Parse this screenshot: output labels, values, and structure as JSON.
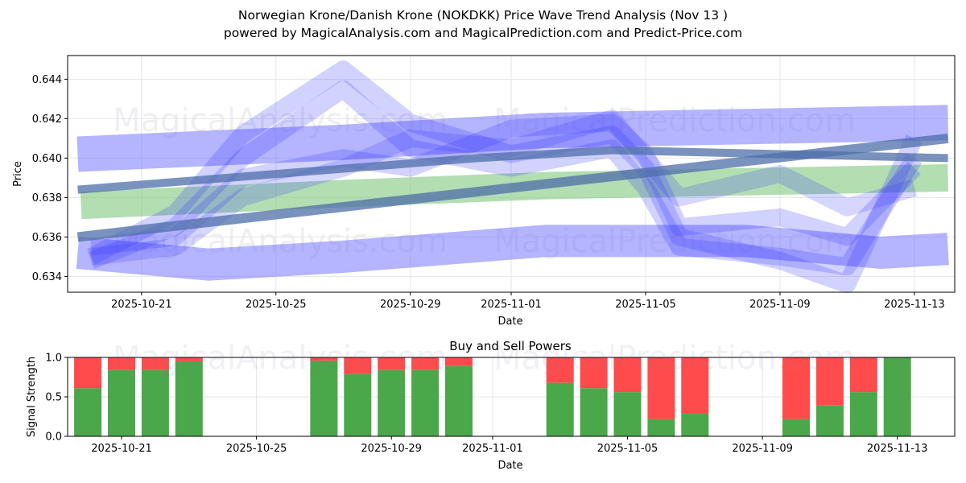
{
  "title_line1": "Norwegian Krone/Danish Krone (NOKDKK) Price Wave Trend Analysis (Nov 13 )",
  "title_line2": "powered by MagicalAnalysis.com and MagicalPrediction.com and Predict-Price.com",
  "watermarks": [
    "MagicalAnalysis.com",
    "MagicalPrediction.com"
  ],
  "chart_data": [
    {
      "type": "line",
      "title": "",
      "xlabel": "Date",
      "ylabel": "Price",
      "x_ticks": [
        "2025-10-21",
        "2025-10-25",
        "2025-10-29",
        "2025-11-01",
        "2025-11-05",
        "2025-11-09",
        "2025-11-13"
      ],
      "y_ticks": [
        "0.634",
        "0.636",
        "0.638",
        "0.640",
        "0.642",
        "0.644"
      ],
      "ylim": [
        0.6332,
        0.6452
      ],
      "xlim_days_from_2025-10-21": [
        -2.2,
        24.2
      ],
      "grid": true,
      "series": [
        {
          "name": "upper-band",
          "color": "#6a6aff",
          "alpha": 0.5,
          "weight": 44,
          "x": [
            -1.9,
            6,
            12,
            18,
            24
          ],
          "y": [
            0.6402,
            0.6408,
            0.6414,
            0.6416,
            0.6418
          ]
        },
        {
          "name": "lower-band",
          "color": "#6a6aff",
          "alpha": 0.5,
          "weight": 40,
          "x": [
            -1.9,
            2,
            6,
            12,
            18,
            22,
            24
          ],
          "y": [
            0.6352,
            0.6346,
            0.635,
            0.6358,
            0.6358,
            0.6352,
            0.6354
          ]
        },
        {
          "name": "green-band",
          "color": "#7fc87f",
          "alpha": 0.6,
          "weight": 34,
          "x": [
            -1.8,
            6,
            12,
            18,
            24
          ],
          "y": [
            0.6376,
            0.6382,
            0.6386,
            0.6388,
            0.639
          ]
        },
        {
          "name": "wave-1",
          "color": "#3030ff",
          "alpha": 0.22,
          "weight": 22,
          "x": [
            -1.5,
            1,
            3,
            6,
            8,
            11,
            14,
            15,
            16,
            19,
            21,
            23
          ],
          "y": [
            0.635,
            0.6372,
            0.6412,
            0.6445,
            0.6418,
            0.6402,
            0.6412,
            0.6395,
            0.636,
            0.6348,
            0.6336,
            0.641
          ]
        },
        {
          "name": "wave-2",
          "color": "#3030ff",
          "alpha": 0.22,
          "weight": 22,
          "x": [
            -1.5,
            1,
            3,
            6,
            8,
            11,
            14,
            15,
            16,
            19,
            21,
            23
          ],
          "y": [
            0.6348,
            0.6365,
            0.64,
            0.6435,
            0.6405,
            0.6395,
            0.6405,
            0.6385,
            0.6355,
            0.635,
            0.6345,
            0.64
          ]
        },
        {
          "name": "wave-3",
          "color": "#3030ff",
          "alpha": 0.22,
          "weight": 22,
          "x": [
            -1.5,
            1,
            3,
            6,
            8,
            11,
            14,
            15,
            16,
            19,
            21,
            23
          ],
          "y": [
            0.6355,
            0.636,
            0.639,
            0.64,
            0.6395,
            0.6415,
            0.6418,
            0.6402,
            0.6365,
            0.637,
            0.636,
            0.6395
          ]
        },
        {
          "name": "wave-4",
          "color": "#3030ff",
          "alpha": 0.2,
          "weight": 22,
          "x": [
            -1.5,
            1,
            3,
            6,
            8,
            11,
            14,
            16,
            19,
            21,
            23
          ],
          "y": [
            0.635,
            0.6355,
            0.638,
            0.6395,
            0.641,
            0.6405,
            0.642,
            0.638,
            0.6392,
            0.6375,
            0.6385
          ]
        },
        {
          "name": "trend-1",
          "color": "#4d6ea8",
          "alpha": 0.75,
          "weight": 12,
          "x": [
            -1.9,
            24
          ],
          "y": [
            0.636,
            0.641
          ]
        },
        {
          "name": "trend-2",
          "color": "#4d6ea8",
          "alpha": 0.75,
          "weight": 10,
          "x": [
            -1.9,
            10,
            14,
            24
          ],
          "y": [
            0.6384,
            0.64,
            0.6404,
            0.64
          ]
        }
      ]
    },
    {
      "type": "bar",
      "title": "Buy and Sell Powers",
      "xlabel": "Date",
      "ylabel": "Signal Strength",
      "y_ticks": [
        "0.0",
        "0.5",
        "1.0"
      ],
      "ylim": [
        0,
        1
      ],
      "x_ticks": [
        "2025-10-21",
        "2025-10-25",
        "2025-10-29",
        "2025-11-01",
        "2025-11-05",
        "2025-11-09",
        "2025-11-13"
      ],
      "categories": [
        "2025-10-20",
        "2025-10-21",
        "2025-10-22",
        "2025-10-23",
        "2025-10-27",
        "2025-10-28",
        "2025-10-29",
        "2025-10-30",
        "2025-10-31",
        "2025-11-03",
        "2025-11-04",
        "2025-11-05",
        "2025-11-06",
        "2025-11-07",
        "2025-11-10",
        "2025-11-11",
        "2025-11-12",
        "2025-11-13"
      ],
      "series": [
        {
          "name": "Buy",
          "color": "#4aa74a",
          "values": [
            0.61,
            0.84,
            0.84,
            0.95,
            0.96,
            0.79,
            0.84,
            0.84,
            0.89,
            0.68,
            0.61,
            0.56,
            0.22,
            0.29,
            0.22,
            0.39,
            0.56,
            1.0
          ]
        },
        {
          "name": "Sell",
          "color": "#ff4b4b",
          "values": [
            0.39,
            0.16,
            0.16,
            0.05,
            0.04,
            0.21,
            0.16,
            0.16,
            0.11,
            0.32,
            0.39,
            0.44,
            0.78,
            0.71,
            0.78,
            0.61,
            0.44,
            0.0
          ]
        }
      ]
    }
  ]
}
